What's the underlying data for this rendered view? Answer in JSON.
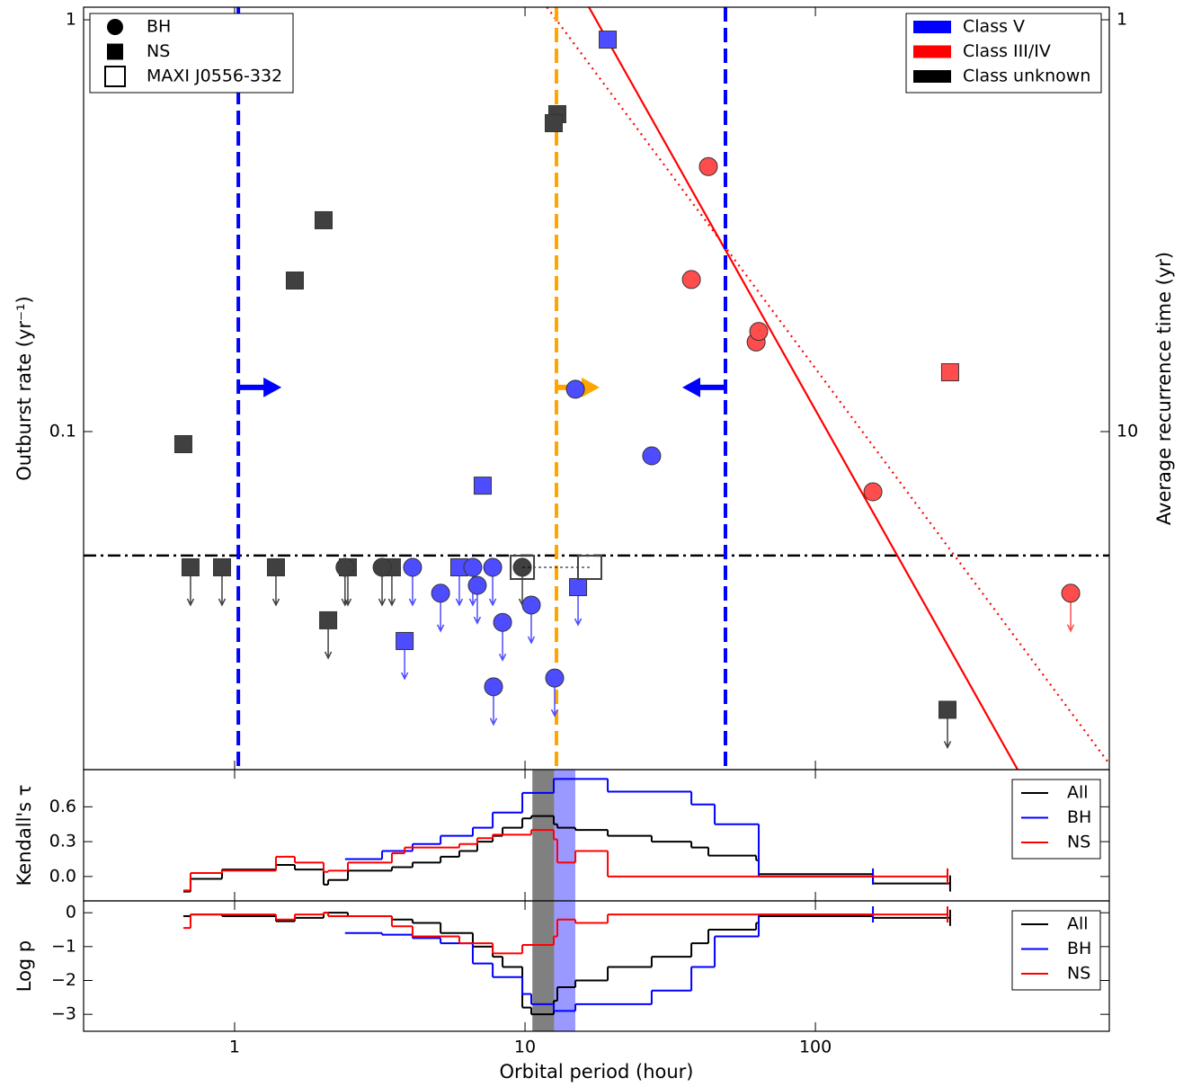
{
  "chart_data": [
    {
      "type": "scatter",
      "log_x": true,
      "log_y": true,
      "xlim": [
        0.302,
        1028
      ],
      "ylim": [
        0.0151,
        1.073
      ],
      "xticks": [
        1,
        10,
        100
      ],
      "show_x_tick_labels": false,
      "yticks": [
        0.1,
        1
      ],
      "y2lim": [
        66.2,
        0.932
      ],
      "y2ticks": [
        1,
        10
      ],
      "ylabel": "Outburst rate (yr⁻¹)",
      "y2label": "Average recurrence time (yr)",
      "legend_shapes": [
        {
          "label": "BH",
          "marker": "circle"
        },
        {
          "label": "NS",
          "marker": "square"
        },
        {
          "label": "MAXI J0556-332",
          "marker": "open-square"
        }
      ],
      "legend_classes": [
        {
          "label": "Class V",
          "color": "#0000ff"
        },
        {
          "label": "Class III/IV",
          "color": "#ff0000"
        },
        {
          "label": "Class unknown",
          "color": "#000000"
        }
      ],
      "hline": {
        "y": 0.05,
        "color": "#000000"
      },
      "vlines": [
        {
          "x": 1.03,
          "color": "#0000ff",
          "arrow": "right"
        },
        {
          "x": 12.83,
          "color": "#ffa500",
          "arrow": "right"
        },
        {
          "x": 49.0,
          "color": "#0000ff",
          "arrow": "left"
        }
      ],
      "arrow_y": 0.128,
      "fits": [
        {
          "color": "#ff0000",
          "style": "solid",
          "x": [
            16.6,
            497
          ],
          "values": [
            1.073,
            0.0151
          ]
        },
        {
          "color": "#ff0000",
          "style": "dotted",
          "x": [
            11.9,
            1028
          ],
          "values": [
            1.073,
            0.0156
          ]
        }
      ],
      "series": [
        {
          "marker": "square",
          "color": "#404040",
          "x": [
            0.666,
            1.612,
            2.025,
            2.1,
            12.92,
            12.56,
            285,
            0.705,
            0.905,
            1.388,
            2.455,
            3.48
          ],
          "values": [
            0.0932,
            0.2327,
            0.326,
            0.0348,
            0.59,
            0.561,
            0.0211,
            0.0468,
            0.0468,
            0.0468,
            0.0468,
            0.0468
          ],
          "upper_limit": [
            false,
            false,
            false,
            true,
            false,
            false,
            true,
            true,
            true,
            true,
            true,
            true
          ]
        },
        {
          "marker": "circle",
          "color": "#404040",
          "x": [
            2.4,
            3.22,
            9.79
          ],
          "values": [
            0.0468,
            0.0468,
            0.0468
          ],
          "upper_limit": [
            true,
            true,
            true
          ]
        },
        {
          "marker": "square",
          "color": "#4d4dff",
          "x": [
            19.27,
            7.15,
            5.94,
            15.23,
            3.85
          ],
          "values": [
            0.895,
            0.0739,
            0.0468,
            0.0419,
            0.031
          ],
          "upper_limit": [
            false,
            false,
            true,
            true,
            true
          ]
        },
        {
          "marker": "circle",
          "color": "#4d4dff",
          "x": [
            14.91,
            27.3,
            4.1,
            5.12,
            6.61,
            6.85,
            7.74,
            8.37,
            10.51,
            7.79,
            12.65
          ],
          "values": [
            0.1267,
            0.0873,
            0.0468,
            0.0405,
            0.0468,
            0.0423,
            0.0468,
            0.0344,
            0.0379,
            0.024,
            0.0252
          ],
          "upper_limit": [
            false,
            false,
            true,
            true,
            true,
            true,
            true,
            true,
            true,
            true,
            true
          ]
        },
        {
          "marker": "circle",
          "color": "#ff4d4d",
          "x": [
            42.8,
            37.4,
            62.5,
            63.8,
            157.8,
            757
          ],
          "values": [
            0.44,
            0.234,
            0.165,
            0.175,
            0.0714,
            0.0405
          ],
          "upper_limit": [
            false,
            false,
            false,
            false,
            false,
            true
          ]
        },
        {
          "marker": "square",
          "color": "#ff4d4d",
          "x": [
            291
          ],
          "values": [
            0.1393
          ],
          "upper_limit": [
            false
          ]
        },
        {
          "marker": "open-square",
          "color": "#404040",
          "x": [
            9.79,
            16.7
          ],
          "values": [
            0.0468,
            0.0468
          ],
          "upper_limit": [
            false,
            false
          ],
          "connect": "dashed"
        }
      ]
    },
    {
      "type": "step",
      "log_x": true,
      "log_y": false,
      "xlim": [
        0.302,
        1028
      ],
      "ylim": [
        -0.21,
        0.92
      ],
      "xticks": [
        1,
        10,
        100
      ],
      "show_x_tick_labels": false,
      "yticks": [
        {
          "value": 0,
          "label": "0.0"
        },
        {
          "value": 0.3,
          "label": "0.3"
        },
        {
          "value": 0.6,
          "label": "0.6"
        }
      ],
      "ylabel": "Kendall's τ",
      "spans": [
        {
          "x0": 10.6,
          "x1": 12.6,
          "color": "#808080"
        },
        {
          "x0": 12.6,
          "x1": 14.9,
          "color": "#9999ff"
        }
      ],
      "series": [
        {
          "name": "All",
          "color": "#000000",
          "x": [
            0.666,
            0.705,
            0.905,
            1.388,
            1.612,
            2.025,
            2.1,
            2.455,
            3.48,
            4.1,
            5.12,
            5.94,
            6.85,
            7.74,
            8.37,
            9.79,
            10.51,
            12.56,
            12.92,
            14.91,
            19.27,
            27.3,
            37.4,
            42.8,
            62.5,
            63.8,
            157.8,
            291
          ],
          "values": [
            -0.13,
            -0.02,
            0.06,
            0.1,
            0.06,
            -0.07,
            -0.03,
            0.05,
            0.08,
            0.12,
            0.17,
            0.22,
            0.3,
            0.35,
            0.42,
            0.5,
            0.52,
            0.45,
            0.42,
            0.4,
            0.35,
            0.3,
            0.25,
            0.18,
            0.14,
            0.02,
            -0.06,
            -0.06
          ]
        },
        {
          "name": "BH",
          "color": "#0000ff",
          "x": [
            2.4,
            3.22,
            4.1,
            5.12,
            6.61,
            7.74,
            9.79,
            12.56,
            19.27,
            37.4,
            45.0,
            63.8,
            157.8
          ],
          "values": [
            0.15,
            0.22,
            0.28,
            0.35,
            0.42,
            0.55,
            0.72,
            0.84,
            0.73,
            0.62,
            0.45,
            0.0,
            0.0
          ]
        },
        {
          "name": "NS",
          "color": "#ff0000",
          "x": [
            0.666,
            0.705,
            0.905,
            1.388,
            1.612,
            2.025,
            2.1,
            2.455,
            3.48,
            3.85,
            5.94,
            6.85,
            7.74,
            10.51,
            12.56,
            12.92,
            14.91,
            19.27,
            285
          ],
          "values": [
            -0.12,
            0.03,
            0.05,
            0.17,
            0.12,
            0.04,
            0.05,
            0.12,
            0.2,
            0.25,
            0.28,
            0.33,
            0.36,
            0.4,
            0.32,
            0.12,
            0.22,
            0.0,
            0.0
          ]
        }
      ]
    },
    {
      "type": "step",
      "log_x": true,
      "log_y": false,
      "xlim": [
        0.302,
        1028
      ],
      "ylim": [
        -3.5,
        0.35
      ],
      "xticks": [
        1,
        10,
        100
      ],
      "show_x_tick_labels": true,
      "yticks": [
        {
          "value": -3,
          "label": "−3"
        },
        {
          "value": -2,
          "label": "−2"
        },
        {
          "value": -1,
          "label": "−1"
        },
        0
      ],
      "ylabel": "Log p",
      "xlabel": "Orbital period (hour)",
      "spans": [
        {
          "x0": 10.6,
          "x1": 12.6,
          "color": "#808080"
        },
        {
          "x0": 12.6,
          "x1": 14.9,
          "color": "#9999ff"
        }
      ],
      "series": [
        {
          "name": "All",
          "color": "#000000",
          "x": [
            0.666,
            0.705,
            0.905,
            1.388,
            1.612,
            2.025,
            2.455,
            3.48,
            4.1,
            5.12,
            6.61,
            7.74,
            8.37,
            9.79,
            10.51,
            12.56,
            12.92,
            14.91,
            19.27,
            27.3,
            37.4,
            42.8,
            62.5,
            63.8,
            157.8,
            291
          ],
          "values": [
            -0.1,
            -0.05,
            -0.1,
            -0.25,
            -0.15,
            0.0,
            -0.1,
            -0.2,
            -0.3,
            -0.6,
            -1.0,
            -1.3,
            -1.6,
            -2.8,
            -3.0,
            -2.6,
            -2.2,
            -2.0,
            -1.6,
            -1.3,
            -0.9,
            -0.5,
            -0.3,
            -0.1,
            -0.15,
            -0.15
          ]
        },
        {
          "name": "BH",
          "color": "#0000ff",
          "x": [
            2.4,
            3.22,
            4.1,
            5.12,
            6.61,
            7.74,
            9.79,
            10.51,
            12.56,
            14.91,
            27.3,
            37.4,
            45.0,
            63.8,
            157.8
          ],
          "values": [
            -0.6,
            -0.65,
            -0.75,
            -0.9,
            -1.5,
            -1.9,
            -2.4,
            -2.7,
            -2.9,
            -2.7,
            -2.3,
            -1.6,
            -0.7,
            -0.05,
            -0.05
          ]
        },
        {
          "name": "NS",
          "color": "#ff0000",
          "x": [
            0.666,
            0.705,
            0.905,
            1.388,
            1.612,
            2.025,
            2.1,
            2.455,
            3.48,
            4.1,
            5.94,
            7.74,
            9.79,
            12.56,
            12.92,
            14.91,
            19.27,
            285
          ],
          "values": [
            -0.45,
            -0.05,
            -0.05,
            -0.2,
            -0.05,
            0.0,
            -0.1,
            -0.1,
            -0.4,
            -0.7,
            -0.9,
            -1.2,
            -0.95,
            -0.7,
            -0.2,
            -0.3,
            -0.05,
            -0.05
          ]
        }
      ]
    }
  ]
}
